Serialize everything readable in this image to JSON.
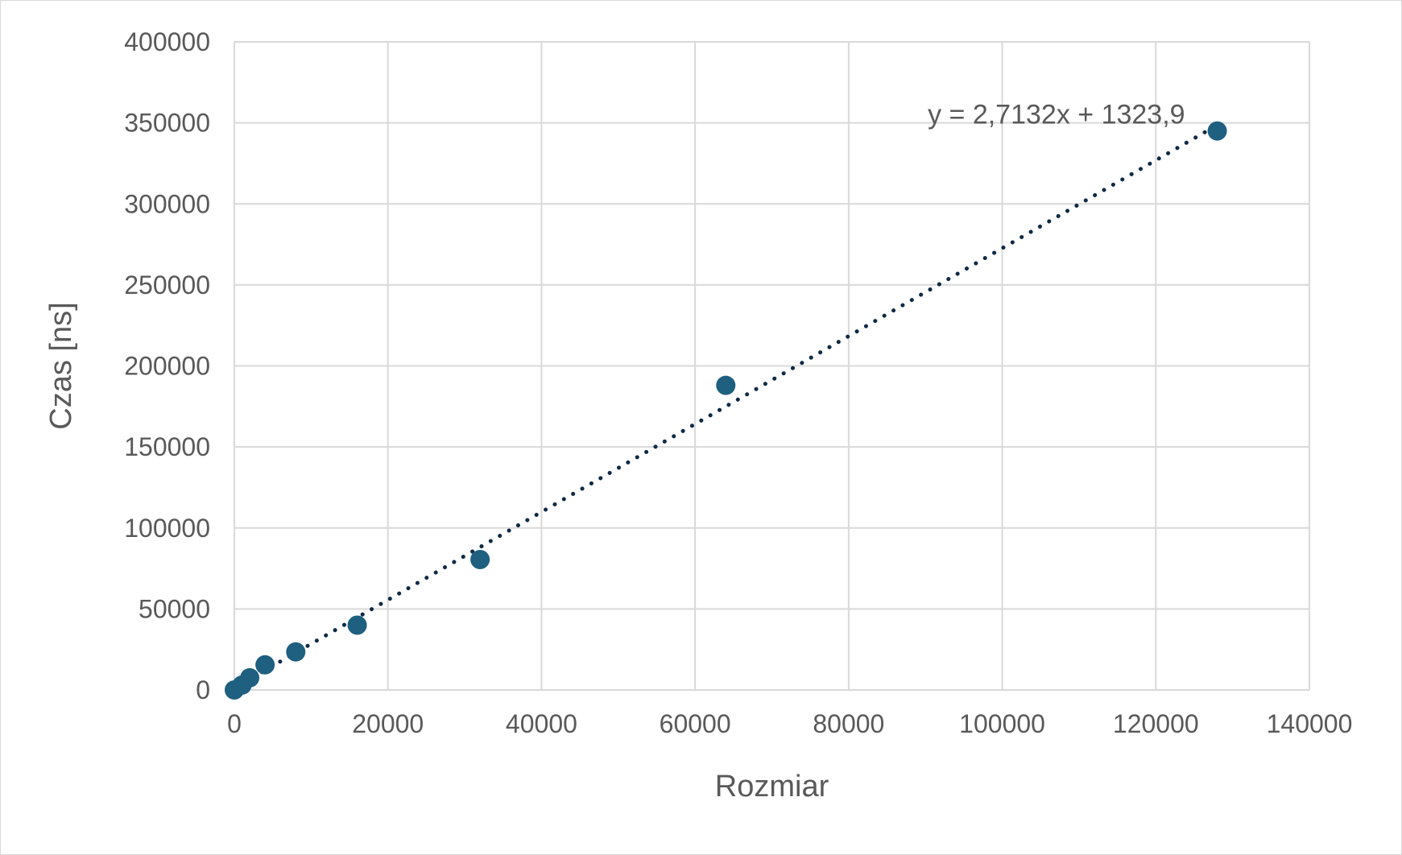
{
  "chart_data": {
    "type": "scatter",
    "xlabel": "Rozmiar",
    "ylabel": "Czas [ns]",
    "xlim": [
      0,
      140000
    ],
    "ylim": [
      0,
      400000
    ],
    "xticks": [
      "0",
      "20000",
      "40000",
      "60000",
      "80000",
      "100000",
      "120000",
      "140000"
    ],
    "yticks": [
      "0",
      "50000",
      "100000",
      "150000",
      "200000",
      "250000",
      "300000",
      "350000",
      "400000"
    ],
    "grid": true,
    "series": [
      {
        "color": "#1f5f7f",
        "points": [
          {
            "x": 0,
            "y": 0
          },
          {
            "x": 1000,
            "y": 3000
          },
          {
            "x": 2000,
            "y": 7500
          },
          {
            "x": 4000,
            "y": 15500
          },
          {
            "x": 8000,
            "y": 23500
          },
          {
            "x": 16000,
            "y": 40000
          },
          {
            "x": 32000,
            "y": 80500
          },
          {
            "x": 64000,
            "y": 188000
          },
          {
            "x": 128000,
            "y": 345000
          }
        ]
      }
    ],
    "trendline": {
      "type": "linear",
      "slope": 2.7132,
      "intercept": 1323.9,
      "equation_label": "y = 2,7132x + 1323,9",
      "color": "#0f2a44",
      "style": "dotted"
    }
  }
}
